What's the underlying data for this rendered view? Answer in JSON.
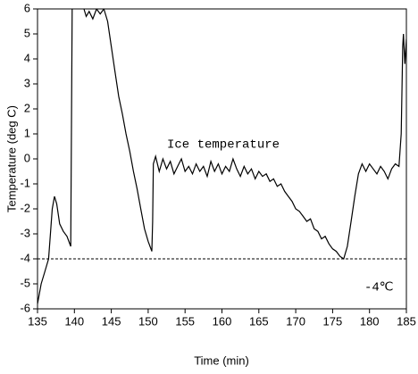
{
  "chart_data": {
    "type": "line",
    "xlabel": "Time (min)",
    "ylabel": "Temperature (deg C)",
    "annotations": [
      "Ice temperature",
      "-4℃"
    ],
    "reference_line": -4,
    "xlim": [
      135,
      185
    ],
    "xticks": [
      135,
      140,
      145,
      150,
      155,
      160,
      165,
      170,
      175,
      180,
      185
    ],
    "ylim": [
      -6,
      6
    ],
    "yticks": [
      -6,
      -5,
      -4,
      -3,
      -2,
      -1,
      0,
      1,
      2,
      3,
      4,
      5,
      6
    ],
    "series": [
      {
        "color": "#000000",
        "x": [
          135,
          135.5,
          136,
          136.5,
          137,
          137.3,
          137.6,
          138,
          138.5,
          139,
          139.5,
          139.7,
          139.8,
          141.3,
          141.6,
          142,
          142.5,
          143,
          143.5,
          144,
          144.5,
          145,
          145.5,
          146,
          146.5,
          147,
          147.5,
          148,
          148.5,
          149,
          149.5,
          150,
          150.5,
          150.6,
          150.7,
          151,
          151.5,
          152,
          152.5,
          153,
          153.5,
          154,
          154.5,
          155,
          155.5,
          156,
          156.5,
          157,
          157.5,
          158,
          158.5,
          159,
          159.5,
          160,
          160.5,
          161,
          161.5,
          162,
          162.5,
          163,
          163.5,
          164,
          164.5,
          165,
          165.5,
          166,
          166.5,
          167,
          167.5,
          168,
          168.5,
          169,
          169.5,
          170,
          170.5,
          171,
          171.5,
          172,
          172.5,
          173,
          173.5,
          174,
          174.5,
          175,
          175.5,
          176,
          176.5,
          177,
          177.5,
          178,
          178.5,
          179,
          179.5,
          180,
          180.5,
          181,
          181.5,
          182,
          182.5,
          183,
          183.5,
          184,
          184.3,
          184.5,
          184.6,
          184.8,
          185
        ],
        "values": [
          -5.8,
          -5.0,
          -4.5,
          -4.0,
          -2.0,
          -1.5,
          -1.8,
          -2.6,
          -2.9,
          -3.1,
          -3.5,
          6,
          null,
          6,
          5.7,
          5.9,
          5.6,
          6,
          5.8,
          6,
          5.5,
          4.5,
          3.5,
          2.5,
          1.8,
          1.0,
          0.3,
          -0.5,
          -1.2,
          -2.0,
          -2.8,
          -3.3,
          -3.7,
          -2.5,
          -0.2,
          0.1,
          -0.5,
          0.0,
          -0.4,
          -0.1,
          -0.6,
          -0.3,
          0,
          -0.5,
          -0.3,
          -0.6,
          -0.2,
          -0.5,
          -0.3,
          -0.7,
          -0.1,
          -0.5,
          -0.2,
          -0.6,
          -0.3,
          -0.5,
          0,
          -0.4,
          -0.7,
          -0.3,
          -0.6,
          -0.4,
          -0.8,
          -0.5,
          -0.7,
          -0.6,
          -0.9,
          -0.8,
          -1.1,
          -1.0,
          -1.3,
          -1.5,
          -1.7,
          -2.0,
          -2.1,
          -2.3,
          -2.5,
          -2.4,
          -2.8,
          -2.9,
          -3.2,
          -3.1,
          -3.4,
          -3.6,
          -3.7,
          -3.9,
          -4.0,
          -3.5,
          -2.5,
          -1.5,
          -0.6,
          -0.2,
          -0.5,
          -0.2,
          -0.4,
          -0.6,
          -0.3,
          -0.5,
          -0.8,
          -0.4,
          -0.2,
          -0.3,
          1.0,
          4.5,
          5.0,
          3.8,
          4.8
        ]
      }
    ]
  }
}
